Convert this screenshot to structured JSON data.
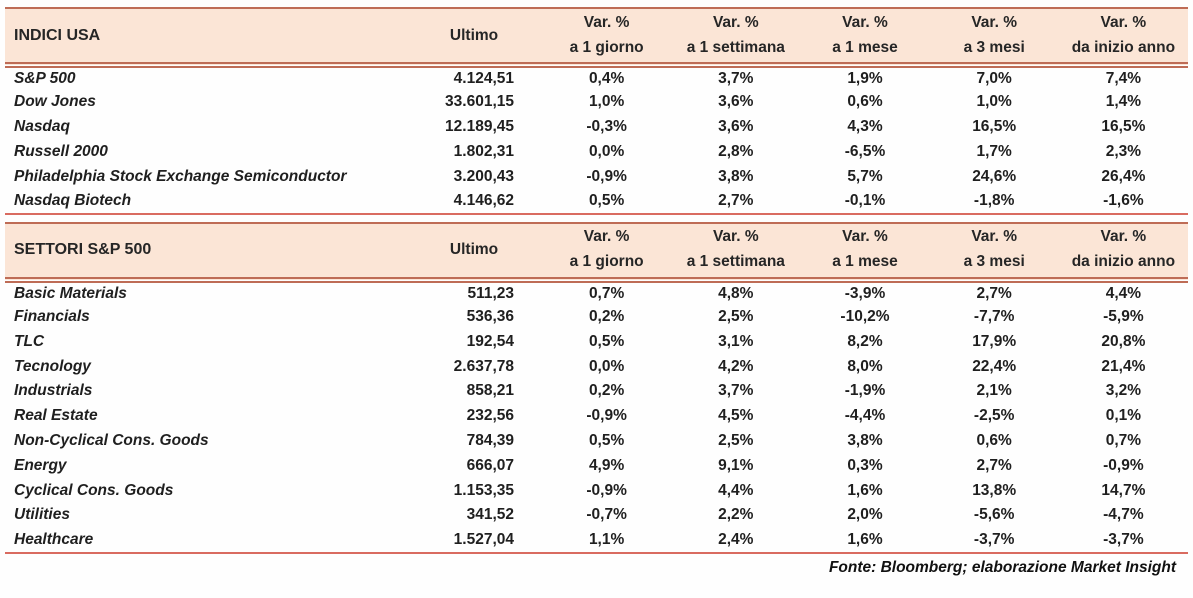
{
  "theme": {
    "header_bg": "#FBE5D6",
    "header_border": "#BE6C56",
    "table_bottom_line": "#D96B60",
    "text_color": "#1F1F1F"
  },
  "footer": {
    "text": "Fonte: Bloomberg; elaborazione Market Insight"
  },
  "tables": [
    {
      "title": "INDICI USA",
      "columns": {
        "ultimo": "Ultimo",
        "vars": [
          {
            "line1": "Var. %",
            "line2": "a 1 giorno"
          },
          {
            "line1": "Var. %",
            "line2": "a 1 settimana"
          },
          {
            "line1": "Var. %",
            "line2": "a 1 mese"
          },
          {
            "line1": "Var. %",
            "line2": "a 3 mesi"
          },
          {
            "line1": "Var. %",
            "line2": "da inizio anno"
          }
        ]
      },
      "rows": [
        {
          "name": "S&P 500",
          "ultimo": "4.124,51",
          "d1": "0,4%",
          "w1": "3,7%",
          "m1": "1,9%",
          "m3": "7,0%",
          "ytd": "7,4%"
        },
        {
          "name": "Dow Jones",
          "ultimo": "33.601,15",
          "d1": "1,0%",
          "w1": "3,6%",
          "m1": "0,6%",
          "m3": "1,0%",
          "ytd": "1,4%"
        },
        {
          "name": "Nasdaq",
          "ultimo": "12.189,45",
          "d1": "-0,3%",
          "w1": "3,6%",
          "m1": "4,3%",
          "m3": "16,5%",
          "ytd": "16,5%"
        },
        {
          "name": "Russell 2000",
          "ultimo": "1.802,31",
          "d1": "0,0%",
          "w1": "2,8%",
          "m1": "-6,5%",
          "m3": "1,7%",
          "ytd": "2,3%"
        },
        {
          "name": "Philadelphia Stock Exchange Semiconductor",
          "ultimo": "3.200,43",
          "d1": "-0,9%",
          "w1": "3,8%",
          "m1": "5,7%",
          "m3": "24,6%",
          "ytd": "26,4%"
        },
        {
          "name": "Nasdaq Biotech",
          "ultimo": "4.146,62",
          "d1": "0,5%",
          "w1": "2,7%",
          "m1": "-0,1%",
          "m3": "-1,8%",
          "ytd": "-1,6%"
        }
      ]
    },
    {
      "title": "SETTORI S&P 500",
      "columns": {
        "ultimo": "Ultimo",
        "vars": [
          {
            "line1": "Var. %",
            "line2": "a 1 giorno"
          },
          {
            "line1": "Var. %",
            "line2": "a 1 settimana"
          },
          {
            "line1": "Var. %",
            "line2": "a 1 mese"
          },
          {
            "line1": "Var. %",
            "line2": "a 3 mesi"
          },
          {
            "line1": "Var. %",
            "line2": "da inizio anno"
          }
        ]
      },
      "rows": [
        {
          "name": "Basic Materials",
          "ultimo": "511,23",
          "d1": "0,7%",
          "w1": "4,8%",
          "m1": "-3,9%",
          "m3": "2,7%",
          "ytd": "4,4%"
        },
        {
          "name": "Financials",
          "ultimo": "536,36",
          "d1": "0,2%",
          "w1": "2,5%",
          "m1": "-10,2%",
          "m3": "-7,7%",
          "ytd": "-5,9%"
        },
        {
          "name": "TLC",
          "ultimo": "192,54",
          "d1": "0,5%",
          "w1": "3,1%",
          "m1": "8,2%",
          "m3": "17,9%",
          "ytd": "20,8%"
        },
        {
          "name": "Tecnology",
          "ultimo": "2.637,78",
          "d1": "0,0%",
          "w1": "4,2%",
          "m1": "8,0%",
          "m3": "22,4%",
          "ytd": "21,4%"
        },
        {
          "name": "Industrials",
          "ultimo": "858,21",
          "d1": "0,2%",
          "w1": "3,7%",
          "m1": "-1,9%",
          "m3": "2,1%",
          "ytd": "3,2%"
        },
        {
          "name": "Real Estate",
          "ultimo": "232,56",
          "d1": "-0,9%",
          "w1": "4,5%",
          "m1": "-4,4%",
          "m3": "-2,5%",
          "ytd": "0,1%"
        },
        {
          "name": "Non-Cyclical Cons. Goods",
          "ultimo": "784,39",
          "d1": "0,5%",
          "w1": "2,5%",
          "m1": "3,8%",
          "m3": "0,6%",
          "ytd": "0,7%"
        },
        {
          "name": "Energy",
          "ultimo": "666,07",
          "d1": "4,9%",
          "w1": "9,1%",
          "m1": "0,3%",
          "m3": "2,7%",
          "ytd": "-0,9%"
        },
        {
          "name": "Cyclical Cons. Goods",
          "ultimo": "1.153,35",
          "d1": "-0,9%",
          "w1": "4,4%",
          "m1": "1,6%",
          "m3": "13,8%",
          "ytd": "14,7%"
        },
        {
          "name": "Utilities",
          "ultimo": "341,52",
          "d1": "-0,7%",
          "w1": "2,2%",
          "m1": "2,0%",
          "m3": "-5,6%",
          "ytd": "-4,7%"
        },
        {
          "name": "Healthcare",
          "ultimo": "1.527,04",
          "d1": "1,1%",
          "w1": "2,4%",
          "m1": "1,6%",
          "m3": "-3,7%",
          "ytd": "-3,7%"
        }
      ]
    }
  ]
}
